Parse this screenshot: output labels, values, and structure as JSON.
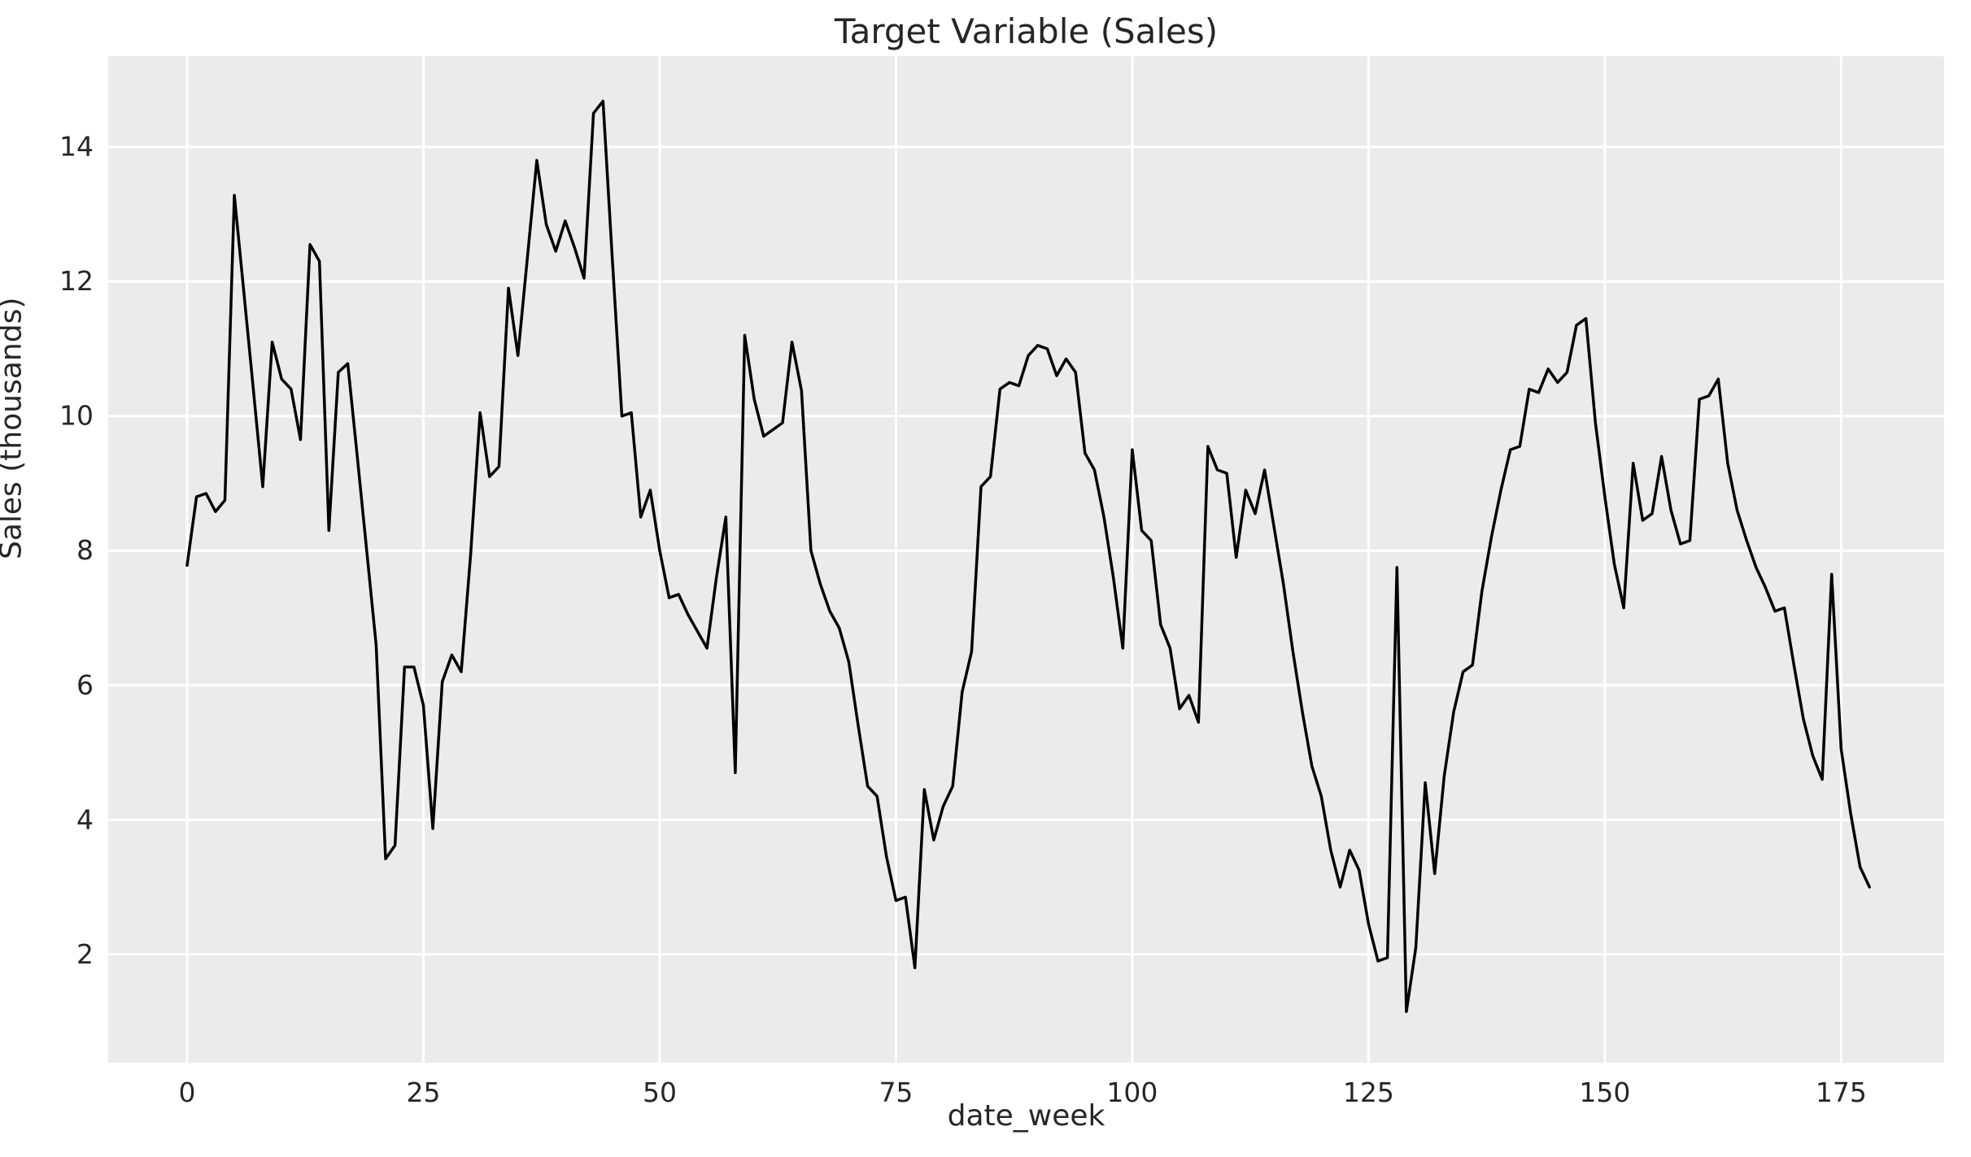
{
  "chart_data": {
    "type": "line",
    "title": "Target Variable (Sales)",
    "xlabel": "date_week",
    "ylabel": "Sales (thousands)",
    "x_start": 0,
    "x_step": 1,
    "values": [
      7.78,
      8.8,
      8.85,
      8.58,
      8.75,
      13.28,
      11.85,
      10.4,
      8.95,
      11.1,
      10.55,
      10.4,
      9.65,
      12.55,
      12.3,
      8.3,
      10.65,
      10.78,
      9.4,
      8.0,
      6.6,
      3.42,
      3.62,
      6.27,
      6.27,
      5.7,
      3.87,
      6.05,
      6.45,
      6.2,
      7.95,
      10.05,
      9.1,
      9.25,
      11.9,
      10.9,
      12.35,
      13.8,
      12.85,
      12.45,
      12.9,
      12.5,
      12.05,
      14.5,
      14.68,
      12.3,
      10.0,
      10.05,
      8.5,
      8.9,
      8.0,
      7.3,
      7.35,
      7.05,
      6.8,
      6.55,
      7.6,
      8.5,
      4.7,
      11.2,
      10.25,
      9.7,
      9.8,
      9.9,
      11.1,
      10.38,
      8.0,
      7.5,
      7.1,
      6.85,
      6.35,
      5.4,
      4.5,
      4.35,
      3.45,
      2.8,
      2.85,
      1.8,
      4.45,
      3.7,
      4.2,
      4.5,
      5.9,
      6.5,
      8.95,
      9.1,
      10.4,
      10.5,
      10.45,
      10.9,
      11.05,
      11.0,
      10.6,
      10.85,
      10.65,
      9.45,
      9.2,
      8.5,
      7.6,
      6.55,
      9.5,
      8.3,
      8.15,
      6.9,
      6.55,
      5.65,
      5.85,
      5.45,
      9.55,
      9.2,
      9.15,
      7.9,
      8.9,
      8.55,
      9.2,
      8.35,
      7.5,
      6.5,
      5.6,
      4.8,
      4.35,
      3.55,
      3.0,
      3.55,
      3.25,
      2.45,
      1.9,
      1.95,
      7.75,
      1.15,
      2.1,
      4.55,
      3.2,
      4.65,
      5.6,
      6.2,
      6.3,
      7.4,
      8.2,
      8.9,
      9.5,
      9.55,
      10.4,
      10.35,
      10.7,
      10.5,
      10.65,
      11.35,
      11.45,
      9.9,
      8.8,
      7.8,
      7.15,
      9.3,
      8.45,
      8.55,
      9.4,
      8.6,
      8.1,
      8.15,
      10.25,
      10.3,
      10.55,
      9.3,
      8.6,
      8.15,
      7.75,
      7.45,
      7.1,
      7.15,
      6.3,
      5.5,
      4.95,
      4.6,
      7.65,
      5.05,
      4.1,
      3.3,
      3.0
    ],
    "xlim": [
      -8.35,
      185.9
    ],
    "ylim": [
      0.39,
      15.35
    ],
    "x_ticks": [
      0,
      25,
      50,
      75,
      100,
      125,
      150,
      175
    ],
    "y_ticks": [
      2,
      4,
      6,
      8,
      10,
      12,
      14
    ],
    "grid": true,
    "legend": false,
    "colors": {
      "figure_background": "#ffffff",
      "plot_background": "#ebebeb",
      "gridline": "#ffffff",
      "line": "#000000",
      "text": "#262626"
    }
  }
}
